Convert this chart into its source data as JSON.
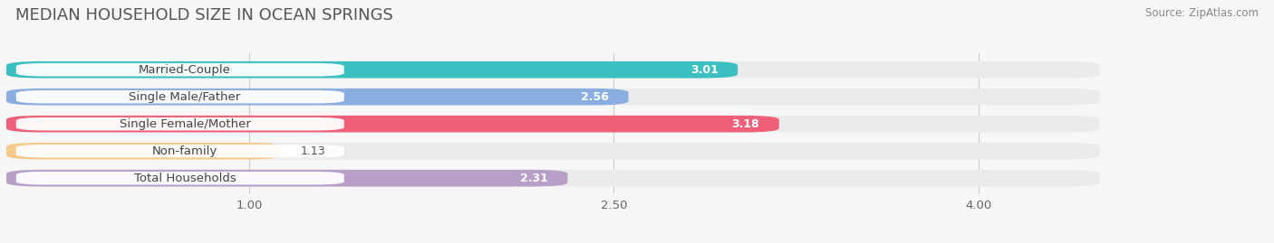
{
  "title": "MEDIAN HOUSEHOLD SIZE IN OCEAN SPRINGS",
  "source": "Source: ZipAtlas.com",
  "categories": [
    "Married-Couple",
    "Single Male/Father",
    "Single Female/Mother",
    "Non-family",
    "Total Households"
  ],
  "values": [
    3.01,
    2.56,
    3.18,
    1.13,
    2.31
  ],
  "bar_colors": [
    "#3bbfc0",
    "#8baee0",
    "#f0607a",
    "#f5c98a",
    "#b89fc8"
  ],
  "background_color": "#f7f7f7",
  "bar_bg_color": "#ebebeb",
  "xlim_min": 0,
  "xlim_max": 4.5,
  "data_xlim_max": 4.0,
  "xticks": [
    1.0,
    2.5,
    4.0
  ],
  "title_fontsize": 13,
  "label_fontsize": 9.5,
  "value_fontsize": 9,
  "source_fontsize": 8.5,
  "value_color_inside": "#ffffff",
  "value_color_outside": "#555555",
  "label_box_color": "#ffffff"
}
